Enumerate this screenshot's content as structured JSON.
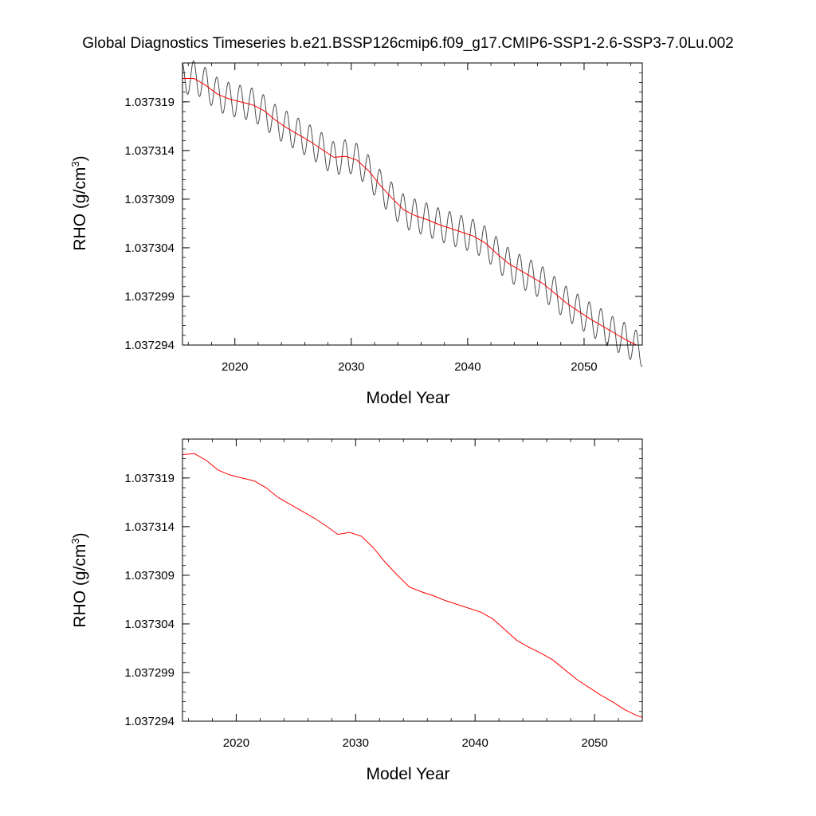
{
  "title": "Global Diagnostics Timeseries b.e21.BSSP126cmip6.f09_g17.CMIP6-SSP1-2.6-SSP3-7.0Lu.002",
  "colors": {
    "raw": "#4a4a4a",
    "smooth": "#ff0000",
    "axis": "#000000"
  },
  "chart_data": [
    {
      "type": "line",
      "xlabel": "Model Year",
      "ylabel": {
        "base": "RHO (g/cm",
        "sup": "3",
        "close": ")"
      },
      "xlim": [
        2015.5,
        2055
      ],
      "ylim": [
        1.037294,
        1.037323
      ],
      "x_ticks": [
        "2020",
        "2030",
        "2040",
        "2050"
      ],
      "x_tick_values": [
        2020,
        2030,
        2040,
        2050
      ],
      "y_ticks": [
        "1.037294",
        "1.037299",
        "1.037304",
        "1.037309",
        "1.037314",
        "1.037319"
      ],
      "y_tick_values": [
        1.037294,
        1.037299,
        1.037304,
        1.037309,
        1.037314,
        1.037319
      ],
      "grid": false,
      "series": [
        {
          "style": "raw-monthly",
          "seasonal_amplitude": 1.7e-06,
          "x": [
            2015.5,
            2016.5,
            2017.5,
            2018.5,
            2019.5,
            2020.5,
            2021.5,
            2022.5,
            2023.5,
            2024.5,
            2025.5,
            2026.5,
            2027.5,
            2028.5,
            2029.5,
            2030.5,
            2031.5,
            2032.5,
            2033.5,
            2034.5,
            2035.5,
            2036.5,
            2037.5,
            2038.5,
            2039.5,
            2040.5,
            2041.5,
            2042.5,
            2043.5,
            2044.5,
            2045.5,
            2046.5,
            2047.5,
            2048.5,
            2049.5,
            2050.5,
            2051.5,
            2052.5,
            2053.5,
            2054.5,
            2055
          ],
          "y": [
            1.0373214,
            1.0373215,
            1.0373208,
            1.0373198,
            1.0373193,
            1.037319,
            1.0373187,
            1.037318,
            1.037317,
            1.0373163,
            1.0373156,
            1.0373149,
            1.0373141,
            1.0373132,
            1.0373134,
            1.037313,
            1.0373118,
            1.0373103,
            1.037309,
            1.0373078,
            1.0373073,
            1.0373069,
            1.0373064,
            1.037306,
            1.0373056,
            1.0373052,
            1.0373045,
            1.0373034,
            1.0373023,
            1.0373016,
            1.037301,
            1.0373003,
            1.0372993,
            1.0372983,
            1.0372975,
            1.0372967,
            1.037296,
            1.0372952,
            1.0372946,
            1.0372938,
            1.0372935
          ]
        },
        {
          "style": "smoothed",
          "x": [
            2015.5,
            2016.5,
            2017.5,
            2018.5,
            2019.5,
            2020.5,
            2021.5,
            2022.5,
            2023.5,
            2024.5,
            2025.5,
            2026.5,
            2027.5,
            2028.5,
            2029.5,
            2030.5,
            2031.5,
            2032.5,
            2033.5,
            2034.5,
            2035.5,
            2036.5,
            2037.5,
            2038.5,
            2039.5,
            2040.5,
            2041.5,
            2042.5,
            2043.5,
            2044.5,
            2045.5,
            2046.5,
            2047.5,
            2048.5,
            2049.5,
            2050.5,
            2051.5,
            2052.5,
            2053.5,
            2054.5
          ],
          "y": [
            1.0373214,
            1.0373214,
            1.0373207,
            1.0373198,
            1.0373193,
            1.037319,
            1.0373187,
            1.0373181,
            1.0373171,
            1.0373163,
            1.0373156,
            1.0373149,
            1.0373141,
            1.0373133,
            1.0373134,
            1.037313,
            1.0373119,
            1.0373104,
            1.0373091,
            1.0373079,
            1.0373073,
            1.0373069,
            1.0373064,
            1.037306,
            1.0373056,
            1.0373052,
            1.0373045,
            1.0373034,
            1.0373024,
            1.0373017,
            1.037301,
            1.0373003,
            1.0372993,
            1.0372983,
            1.0372975,
            1.0372967,
            1.037296,
            1.0372953,
            1.0372946,
            1.037294
          ]
        }
      ]
    },
    {
      "type": "line",
      "xlabel": "Model Year",
      "ylabel": {
        "base": "RHO (g/cm",
        "sup": "3",
        "close": ")"
      },
      "xlim": [
        2015.5,
        2054
      ],
      "ylim": [
        1.037294,
        1.037323
      ],
      "x_ticks": [
        "2020",
        "2030",
        "2040",
        "2050"
      ],
      "x_tick_values": [
        2020,
        2030,
        2040,
        2050
      ],
      "y_ticks": [
        "1.037294",
        "1.037299",
        "1.037304",
        "1.037309",
        "1.037314",
        "1.037319"
      ],
      "y_tick_values": [
        1.037294,
        1.037299,
        1.037304,
        1.037309,
        1.037314,
        1.037319
      ],
      "grid": false,
      "series": [
        {
          "style": "annual-mean",
          "x": [
            2015.5,
            2016.5,
            2017.5,
            2018.5,
            2019.5,
            2020.5,
            2021.5,
            2022.5,
            2023.5,
            2024.5,
            2025.5,
            2026.5,
            2027.5,
            2028.5,
            2029.5,
            2030.5,
            2031.5,
            2032.5,
            2033.5,
            2034.5,
            2035.5,
            2036.5,
            2037.5,
            2038.5,
            2039.5,
            2040.5,
            2041.5,
            2042.5,
            2043.5,
            2044.5,
            2045.5,
            2046.5,
            2047.5,
            2048.5,
            2049.5,
            2050.5,
            2051.5,
            2052.5,
            2053.5,
            2054
          ],
          "y": [
            1.0373214,
            1.0373215,
            1.0373208,
            1.0373198,
            1.0373193,
            1.037319,
            1.0373187,
            1.037318,
            1.037317,
            1.0373163,
            1.0373156,
            1.0373149,
            1.0373141,
            1.0373132,
            1.0373134,
            1.037313,
            1.0373118,
            1.0373103,
            1.037309,
            1.0373078,
            1.0373073,
            1.0373069,
            1.0373064,
            1.037306,
            1.0373056,
            1.0373052,
            1.0373045,
            1.0373034,
            1.0373023,
            1.0373016,
            1.037301,
            1.0373003,
            1.0372993,
            1.0372983,
            1.0372975,
            1.0372967,
            1.037296,
            1.0372952,
            1.0372946,
            1.0372944
          ]
        }
      ]
    }
  ]
}
